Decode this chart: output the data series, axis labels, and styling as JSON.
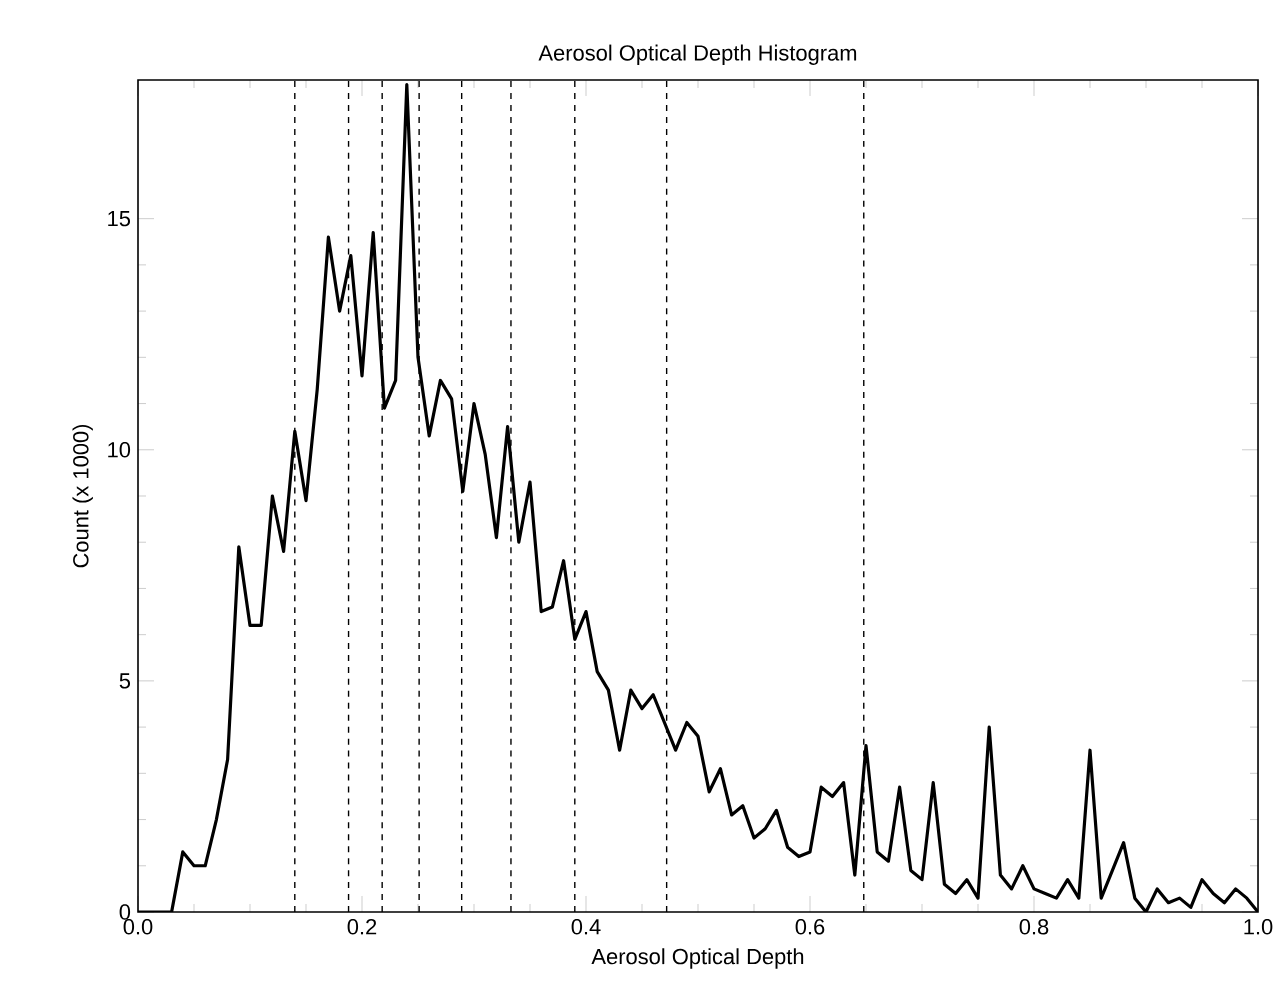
{
  "chart_data": {
    "type": "line",
    "title": "Aerosol Optical Depth Histogram",
    "xlabel": "Aerosol Optical Depth",
    "ylabel": "Count (x 1000)",
    "x": [
      0,
      0.01,
      0.02,
      0.03,
      0.04,
      0.05,
      0.06,
      0.07,
      0.08,
      0.09,
      0.1,
      0.11,
      0.12,
      0.13,
      0.14,
      0.15,
      0.16,
      0.17,
      0.18,
      0.19,
      0.2,
      0.21,
      0.22,
      0.23,
      0.24,
      0.25,
      0.26,
      0.27,
      0.28,
      0.29,
      0.3,
      0.31,
      0.32,
      0.33,
      0.34,
      0.35,
      0.36,
      0.37,
      0.38,
      0.39,
      0.4,
      0.41,
      0.42,
      0.43,
      0.44,
      0.45,
      0.46,
      0.47,
      0.48,
      0.49,
      0.5,
      0.51,
      0.52,
      0.53,
      0.54,
      0.55,
      0.56,
      0.57,
      0.58,
      0.59,
      0.6,
      0.61,
      0.62,
      0.63,
      0.64,
      0.65,
      0.66,
      0.67,
      0.68,
      0.69,
      0.7,
      0.71,
      0.72,
      0.73,
      0.74,
      0.75,
      0.76,
      0.77,
      0.78,
      0.79,
      0.8,
      0.81,
      0.82,
      0.83,
      0.84,
      0.85,
      0.86,
      0.87,
      0.88,
      0.89,
      0.9,
      0.91,
      0.92,
      0.93,
      0.94,
      0.95,
      0.96,
      0.97,
      0.98,
      0.99,
      1.0
    ],
    "series": [
      {
        "color": "#000000",
        "values": [
          0,
          0,
          0,
          0,
          1.3,
          1.0,
          1.0,
          2.0,
          3.3,
          7.9,
          6.2,
          6.2,
          9.0,
          7.8,
          10.4,
          8.9,
          11.3,
          14.6,
          13.0,
          14.2,
          11.6,
          14.7,
          10.9,
          11.5,
          17.9,
          12.0,
          10.3,
          11.5,
          11.1,
          9.1,
          11.0,
          9.9,
          8.1,
          10.5,
          8.0,
          9.3,
          6.5,
          6.6,
          7.6,
          5.9,
          6.5,
          5.2,
          4.8,
          3.5,
          4.8,
          4.4,
          4.7,
          4.1,
          3.5,
          4.1,
          3.8,
          2.6,
          3.1,
          2.1,
          2.3,
          1.6,
          1.8,
          2.2,
          1.4,
          1.2,
          1.3,
          2.7,
          2.5,
          2.8,
          0.8,
          3.6,
          1.3,
          1.1,
          2.7,
          0.9,
          0.7,
          2.8,
          0.6,
          0.4,
          0.7,
          0.3,
          4.0,
          0.8,
          0.5,
          1.0,
          0.5,
          0.4,
          0.3,
          0.7,
          0.3,
          3.5,
          0.3,
          0.9,
          1.5,
          0.3,
          0,
          0.5,
          0.2,
          0.3,
          0.1,
          0.7,
          0.4,
          0.2,
          0.5,
          0.3,
          0
        ]
      }
    ],
    "xlim": [
      0,
      1
    ],
    "ylim": [
      0,
      18
    ],
    "xticks": [
      {
        "value": 0,
        "label": "0.0"
      },
      {
        "value": 0.2,
        "label": "0.2"
      },
      {
        "value": 0.4,
        "label": "0.4"
      },
      {
        "value": 0.6,
        "label": "0.6"
      },
      {
        "value": 0.8,
        "label": "0.8"
      },
      {
        "value": 1,
        "label": "1.0"
      }
    ],
    "yticks": [
      0,
      5,
      10,
      15
    ],
    "ref_lines": [
      {
        "axis": "x",
        "value": 0.14,
        "color": "#000000",
        "line_style": "dashed"
      },
      {
        "axis": "x",
        "value": 0.188,
        "color": "#000000",
        "line_style": "dashed"
      },
      {
        "axis": "x",
        "value": 0.218,
        "color": "#000000",
        "line_style": "dashed"
      },
      {
        "axis": "x",
        "value": 0.251,
        "color": "#000000",
        "line_style": "dashed"
      },
      {
        "axis": "x",
        "value": 0.289,
        "color": "#000000",
        "line_style": "dashed"
      },
      {
        "axis": "x",
        "value": 0.333,
        "color": "#000000",
        "line_style": "dashed"
      },
      {
        "axis": "x",
        "value": 0.39,
        "color": "#000000",
        "line_style": "dashed"
      },
      {
        "axis": "x",
        "value": 0.472,
        "color": "#000000",
        "line_style": "dashed"
      },
      {
        "axis": "x",
        "value": 0.648,
        "color": "#000000",
        "line_style": "dashed"
      }
    ]
  }
}
